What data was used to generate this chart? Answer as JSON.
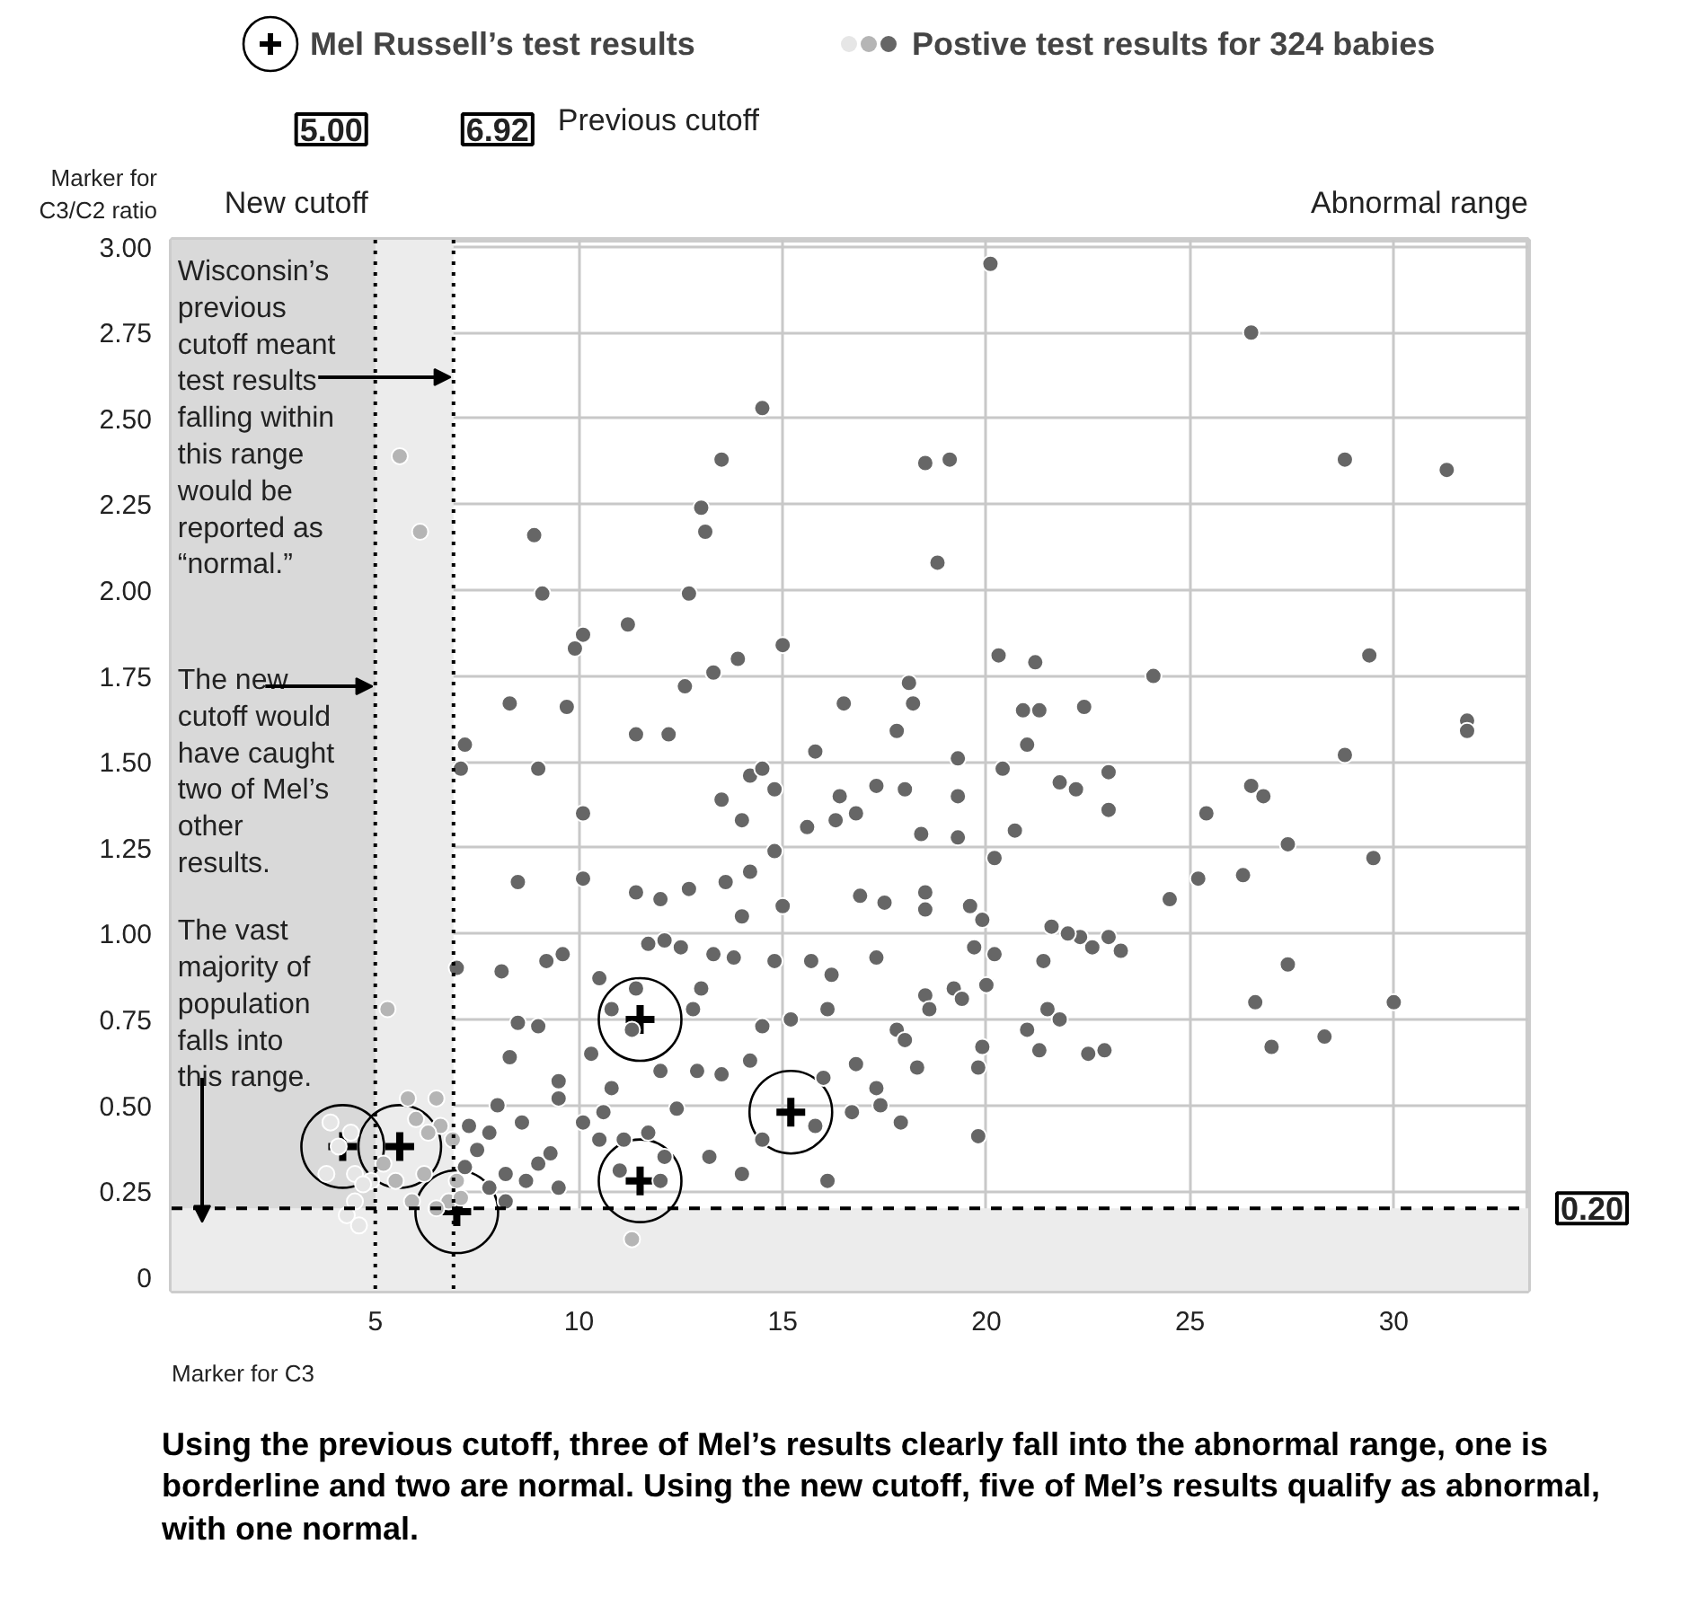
{
  "chart_data": {
    "type": "scatter",
    "xlabel": "Marker for C3",
    "ylabel": "Marker for C3/C2 ratio",
    "xlim": [
      0,
      33.3
    ],
    "ylim": [
      -0.04,
      3.02
    ],
    "xticks": [
      5,
      10,
      15,
      20,
      25,
      30
    ],
    "yticks": [
      0,
      {
        "value": 0.25,
        "label": "0.25"
      },
      {
        "value": 0.5,
        "label": "0.50"
      },
      {
        "value": 0.75,
        "label": "0.75"
      },
      {
        "value": 1,
        "label": "1.00"
      },
      {
        "value": 1.25,
        "label": "1.25"
      },
      {
        "value": 1.5,
        "label": "1.50"
      },
      {
        "value": 1.75,
        "label": "1.75"
      },
      {
        "value": 2,
        "label": "2.00"
      },
      {
        "value": 2.25,
        "label": "2.25"
      },
      {
        "value": 2.5,
        "label": "2.50"
      },
      {
        "value": 2.75,
        "label": "2.75"
      },
      {
        "value": 3,
        "label": "3.00"
      }
    ],
    "grid": true,
    "legend": "top",
    "bands": [
      {
        "axis": "x",
        "from": 0,
        "to": 5,
        "color": "#d9d9d9"
      },
      {
        "axis": "x",
        "from": 5,
        "to": 6.92,
        "color": "#ececec"
      },
      {
        "axis": "y",
        "from": -0.04,
        "to": 0.2,
        "color": "#ececec"
      }
    ],
    "ref_lines": [
      {
        "axis": "x",
        "value": 5,
        "label": "5.00",
        "color": "#000000",
        "line_style": "dotted"
      },
      {
        "axis": "x",
        "value": 6.92,
        "label": "6.92",
        "color": "#000000",
        "line_style": "dotted"
      },
      {
        "axis": "y",
        "value": 0.2,
        "label": "0.20",
        "color": "#000000",
        "line_style": "dashed"
      }
    ],
    "annotations": [
      "Wisconsin’s previous cutoff meant test results falling within this range would be reported as “normal.”",
      {
        "text": "The new cutoff would have caught two of Mel’s other results.",
        "x": 5,
        "y": 1.72
      },
      "The vast majority of population falls into this range.",
      "Using the previous cutoff, three of Mel’s results clearly fall into the abnormal range, one is borderline and two are normal. Using the new cutoff, five of Mel’s results qualify as abnormal, with one normal.",
      "New cutoff",
      "Previous cutoff",
      "Abnormal range"
    ],
    "series": [
      {
        "name": "Mel Russell’s test results",
        "color": "#000000",
        "x": [
          4.2,
          5.6,
          7.0,
          11.5,
          11.5,
          15.2
        ],
        "values": [
          0.38,
          0.38,
          0.19,
          0.28,
          0.75,
          0.48
        ]
      },
      {
        "color": "#e6e6e6",
        "marker": "circle",
        "x": [
          4.1,
          3.8,
          4.5,
          4.9,
          4.3,
          4.6,
          4.5,
          4.7,
          3.9,
          4.4
        ],
        "values": [
          0.38,
          0.3,
          0.3,
          0.28,
          0.18,
          0.15,
          0.22,
          0.27,
          0.45,
          0.42
        ]
      },
      {
        "color": "#b5b5b5",
        "marker": "circle",
        "x": [
          5.6,
          6.1,
          5.3,
          6.0,
          6.5,
          5.8,
          6.9,
          6.2,
          7.0,
          6.8,
          6.5,
          5.2,
          5.5,
          5.9,
          7.1,
          6.6,
          6.3,
          11.3
        ],
        "values": [
          2.39,
          2.17,
          0.78,
          0.46,
          0.52,
          0.52,
          0.4,
          0.3,
          0.28,
          0.22,
          0.2,
          0.33,
          0.28,
          0.22,
          0.23,
          0.44,
          0.42,
          0.11
        ]
      },
      {
        "name": "Postive test results for 324 babies",
        "color": "#666666",
        "marker": "circle",
        "x": [
          20.1,
          26.5,
          14.5,
          13.5,
          18.5,
          19.1,
          28.8,
          31.3,
          13.0,
          13.1,
          8.9,
          18.8,
          9.1,
          12.7,
          11.2,
          10.1,
          9.9,
          15.0,
          20.3,
          21.2,
          29.4,
          13.3,
          13.9,
          24.1,
          18.1,
          8.3,
          9.7,
          12.6,
          16.5,
          18.2,
          20.9,
          21.3,
          22.4,
          31.8,
          31.8,
          28.8,
          7.2,
          11.4,
          12.2,
          15.8,
          17.8,
          19.3,
          21.0,
          7.1,
          9.0,
          10.1,
          13.5,
          14.2,
          14.5,
          14.8,
          16.4,
          17.3,
          18.0,
          19.3,
          20.4,
          21.8,
          22.2,
          23.0,
          23.0,
          26.5,
          26.8,
          25.4,
          14.0,
          15.6,
          16.3,
          16.8,
          18.4,
          19.3,
          20.7,
          29.5,
          27.4,
          8.5,
          10.1,
          13.6,
          14.2,
          14.8,
          20.2,
          25.2,
          26.3,
          24.5,
          11.4,
          12.0,
          12.7,
          14.0,
          15.0,
          16.9,
          17.5,
          18.5,
          18.5,
          19.6,
          19.9,
          21.6,
          22.3,
          23.0,
          23.3,
          27.4,
          7.0,
          8.1,
          9.2,
          9.6,
          11.7,
          12.5,
          13.3,
          13.8,
          14.8,
          15.7,
          16.2,
          17.3,
          19.7,
          20.2,
          21.4,
          22.0,
          22.6,
          12.1,
          10.5,
          11.4,
          13.0,
          18.5,
          18.6,
          19.2,
          19.4,
          20.0,
          21.5,
          21.8,
          21.0,
          26.6,
          27.0,
          28.3,
          30.0,
          8.5,
          9.0,
          10.8,
          11.3,
          12.8,
          14.5,
          15.2,
          16.1,
          17.8,
          19.8,
          19.9,
          21.3,
          22.5,
          22.9,
          8.3,
          9.5,
          10.3,
          10.8,
          12.0,
          12.9,
          13.5,
          14.2,
          16.0,
          16.8,
          17.3,
          18.3,
          18.0,
          7.3,
          7.8,
          8.0,
          8.6,
          9.5,
          10.1,
          10.6,
          11.1,
          11.7,
          12.1,
          12.4,
          13.2,
          14.5,
          15.8,
          16.7,
          17.4,
          17.9,
          16.1,
          19.8,
          7.5,
          8.2,
          8.7,
          9.0,
          9.3,
          10.5,
          11.0,
          12.0,
          7.2,
          7.8,
          8.2,
          9.5,
          14.0
        ],
        "values": [
          2.95,
          2.75,
          2.53,
          2.38,
          2.37,
          2.38,
          2.38,
          2.35,
          2.24,
          2.17,
          2.16,
          2.08,
          1.99,
          1.99,
          1.9,
          1.87,
          1.83,
          1.84,
          1.81,
          1.79,
          1.81,
          1.76,
          1.8,
          1.75,
          1.73,
          1.67,
          1.66,
          1.72,
          1.67,
          1.67,
          1.65,
          1.65,
          1.66,
          1.62,
          1.59,
          1.52,
          1.55,
          1.58,
          1.58,
          1.53,
          1.59,
          1.51,
          1.55,
          1.48,
          1.48,
          1.35,
          1.39,
          1.46,
          1.48,
          1.42,
          1.4,
          1.43,
          1.42,
          1.4,
          1.48,
          1.44,
          1.42,
          1.47,
          1.36,
          1.43,
          1.4,
          1.35,
          1.33,
          1.31,
          1.33,
          1.35,
          1.29,
          1.28,
          1.3,
          1.22,
          1.26,
          1.15,
          1.16,
          1.15,
          1.18,
          1.24,
          1.22,
          1.16,
          1.17,
          1.1,
          1.12,
          1.1,
          1.13,
          1.05,
          1.08,
          1.11,
          1.09,
          1.12,
          1.07,
          1.08,
          1.04,
          1.02,
          0.99,
          0.99,
          0.95,
          0.91,
          0.9,
          0.89,
          0.92,
          0.94,
          0.97,
          0.96,
          0.94,
          0.93,
          0.92,
          0.92,
          0.88,
          0.93,
          0.96,
          0.94,
          0.92,
          1.0,
          0.96,
          0.98,
          0.87,
          0.84,
          0.84,
          0.82,
          0.78,
          0.84,
          0.81,
          0.85,
          0.78,
          0.75,
          0.72,
          0.8,
          0.67,
          0.7,
          0.8,
          0.74,
          0.73,
          0.78,
          0.72,
          0.78,
          0.73,
          0.75,
          0.78,
          0.72,
          0.61,
          0.67,
          0.66,
          0.65,
          0.66,
          0.64,
          0.57,
          0.65,
          0.55,
          0.6,
          0.6,
          0.59,
          0.63,
          0.58,
          0.62,
          0.55,
          0.61,
          0.69,
          0.44,
          0.42,
          0.5,
          0.45,
          0.52,
          0.45,
          0.48,
          0.4,
          0.42,
          0.35,
          0.49,
          0.35,
          0.4,
          0.44,
          0.48,
          0.5,
          0.45,
          0.28,
          0.41,
          0.37,
          0.3,
          0.28,
          0.33,
          0.36,
          0.4,
          0.31,
          0.28,
          0.32,
          0.26,
          0.22,
          0.26,
          0.3
        ]
      }
    ]
  }
}
